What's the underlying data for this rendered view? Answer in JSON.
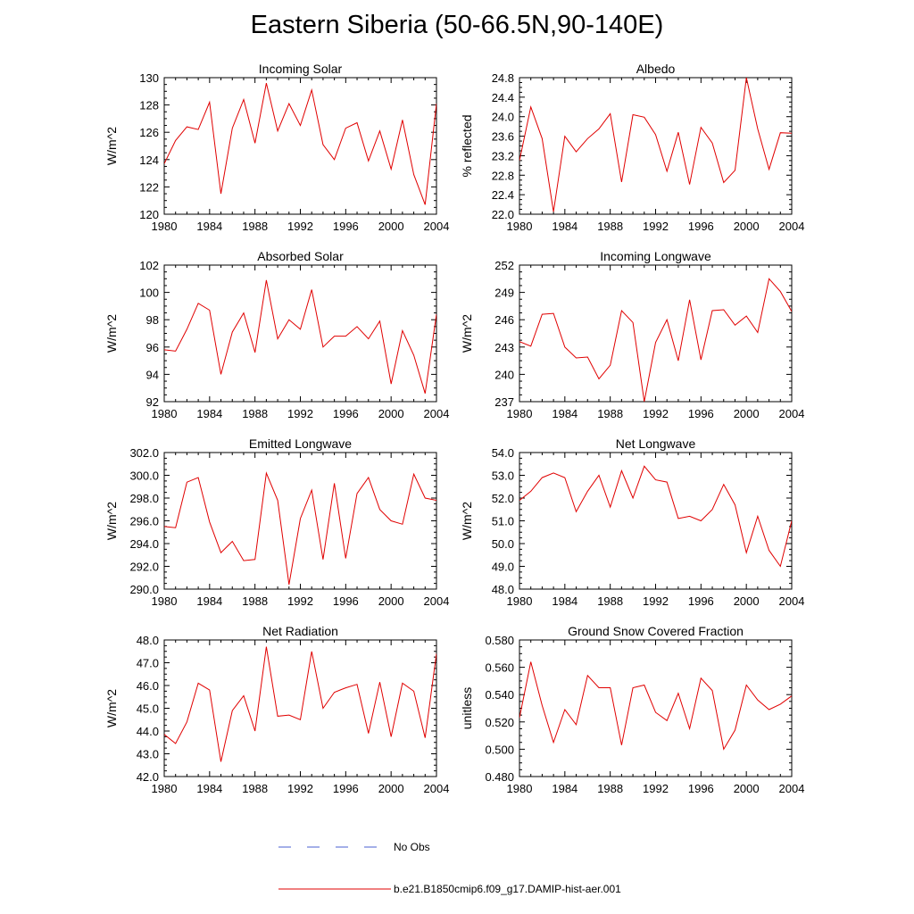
{
  "figure": {
    "title": "Eastern Siberia (50-66.5N,90-140E)"
  },
  "legend": [
    {
      "label": "No Obs",
      "color": "#4a5fd0",
      "dash": "dashed"
    },
    {
      "label": "b.e21.B1850cmip6.f09_g17.DAMIP-hist-aer.001",
      "color": "#e00000",
      "dash": "solid"
    }
  ],
  "chart_data": [
    {
      "type": "line",
      "title": "Incoming Solar",
      "ylabel": "W/m^2",
      "xlim": [
        1980,
        2004
      ],
      "ylim": [
        120,
        130
      ],
      "xticks": [
        1980,
        1984,
        1988,
        1992,
        1996,
        2000,
        2004
      ],
      "yticks": [
        "120",
        "122",
        "124",
        "126",
        "128",
        "130"
      ],
      "ytick_values": [
        120,
        122,
        124,
        126,
        128,
        130
      ],
      "x": [
        1980,
        1981,
        1982,
        1983,
        1984,
        1985,
        1986,
        1987,
        1988,
        1989,
        1990,
        1991,
        1992,
        1993,
        1994,
        1995,
        1996,
        1997,
        1998,
        1999,
        2000,
        2001,
        2002,
        2003,
        2004
      ],
      "series": [
        {
          "color": "#e00000",
          "values": [
            123.7,
            125.4,
            126.4,
            126.2,
            128.2,
            121.5,
            126.3,
            128.4,
            125.2,
            129.6,
            126.1,
            128.1,
            126.5,
            129.1,
            125.1,
            124.0,
            126.3,
            126.7,
            123.9,
            126.1,
            123.3,
            126.9,
            122.9,
            120.7,
            128.1
          ]
        }
      ]
    },
    {
      "type": "line",
      "title": "Albedo",
      "ylabel": "% reflected",
      "xlim": [
        1980,
        2004
      ],
      "ylim": [
        22.0,
        24.8
      ],
      "xticks": [
        1980,
        1984,
        1988,
        1992,
        1996,
        2000,
        2004
      ],
      "yticks": [
        "22.0",
        "22.4",
        "22.8",
        "23.2",
        "23.6",
        "24.0",
        "24.4",
        "24.8"
      ],
      "ytick_values": [
        22.0,
        22.4,
        22.8,
        23.2,
        23.6,
        24.0,
        24.4,
        24.8
      ],
      "x": [
        1980,
        1981,
        1982,
        1983,
        1984,
        1985,
        1986,
        1987,
        1988,
        1989,
        1990,
        1991,
        1992,
        1993,
        1994,
        1995,
        1996,
        1997,
        1998,
        1999,
        2000,
        2001,
        2002,
        2003,
        2004
      ],
      "series": [
        {
          "color": "#e00000",
          "values": [
            23.1,
            24.2,
            23.55,
            22.05,
            23.6,
            23.28,
            23.55,
            23.75,
            24.06,
            22.66,
            24.04,
            23.99,
            23.63,
            22.88,
            23.68,
            22.61,
            23.78,
            23.46,
            22.65,
            22.9,
            24.8,
            23.75,
            22.92,
            23.67,
            23.66
          ]
        }
      ]
    },
    {
      "type": "line",
      "title": "Absorbed Solar",
      "ylabel": "W/m^2",
      "xlim": [
        1980,
        2004
      ],
      "ylim": [
        92,
        102
      ],
      "xticks": [
        1980,
        1984,
        1988,
        1992,
        1996,
        2000,
        2004
      ],
      "yticks": [
        "92",
        "94",
        "96",
        "98",
        "100",
        "102"
      ],
      "ytick_values": [
        92,
        94,
        96,
        98,
        100,
        102
      ],
      "x": [
        1980,
        1981,
        1982,
        1983,
        1984,
        1985,
        1986,
        1987,
        1988,
        1989,
        1990,
        1991,
        1992,
        1993,
        1994,
        1995,
        1996,
        1997,
        1998,
        1999,
        2000,
        2001,
        2002,
        2003,
        2004
      ],
      "series": [
        {
          "color": "#e00000",
          "values": [
            95.8,
            95.7,
            97.3,
            99.2,
            98.7,
            94.0,
            97.1,
            98.5,
            95.6,
            100.9,
            96.6,
            98.0,
            97.3,
            100.2,
            96.0,
            96.8,
            96.8,
            97.5,
            96.6,
            97.9,
            93.3,
            97.2,
            95.4,
            92.6,
            98.4
          ]
        }
      ]
    },
    {
      "type": "line",
      "title": "Incoming Longwave",
      "ylabel": "W/m^2",
      "xlim": [
        1980,
        2004
      ],
      "ylim": [
        237,
        252
      ],
      "xticks": [
        1980,
        1984,
        1988,
        1992,
        1996,
        2000,
        2004
      ],
      "yticks": [
        "237",
        "240",
        "243",
        "246",
        "249",
        "252"
      ],
      "ytick_values": [
        237,
        240,
        243,
        246,
        249,
        252
      ],
      "x": [
        1980,
        1981,
        1982,
        1983,
        1984,
        1985,
        1986,
        1987,
        1988,
        1989,
        1990,
        1991,
        1992,
        1993,
        1994,
        1995,
        1996,
        1997,
        1998,
        1999,
        2000,
        2001,
        2002,
        2003,
        2004
      ],
      "series": [
        {
          "color": "#e00000",
          "values": [
            243.6,
            243.1,
            246.6,
            246.7,
            243.0,
            241.8,
            241.9,
            239.5,
            241.0,
            247.0,
            245.7,
            237.0,
            243.5,
            246.0,
            241.5,
            248.2,
            241.6,
            247.0,
            247.1,
            245.4,
            246.4,
            244.6,
            250.5,
            249.1,
            246.9
          ]
        }
      ]
    },
    {
      "type": "line",
      "title": "Emitted Longwave",
      "ylabel": "W/m^2",
      "xlim": [
        1980,
        2004
      ],
      "ylim": [
        290,
        302
      ],
      "xticks": [
        1980,
        1984,
        1988,
        1992,
        1996,
        2000,
        2004
      ],
      "yticks": [
        "290.0",
        "292.0",
        "294.0",
        "296.0",
        "298.0",
        "300.0",
        "302.0"
      ],
      "ytick_values": [
        290,
        292,
        294,
        296,
        298,
        300,
        302
      ],
      "x": [
        1980,
        1981,
        1982,
        1983,
        1984,
        1985,
        1986,
        1987,
        1988,
        1989,
        1990,
        1991,
        1992,
        1993,
        1994,
        1995,
        1996,
        1997,
        1998,
        1999,
        2000,
        2001,
        2002,
        2003,
        2004
      ],
      "series": [
        {
          "color": "#e00000",
          "values": [
            295.5,
            295.4,
            299.4,
            299.8,
            295.9,
            293.2,
            294.2,
            292.5,
            292.6,
            300.2,
            297.8,
            290.4,
            296.2,
            298.7,
            292.6,
            299.3,
            292.7,
            298.4,
            299.8,
            297.0,
            296.0,
            295.7,
            300.1,
            298.0,
            297.8
          ]
        }
      ]
    },
    {
      "type": "line",
      "title": "Net Longwave",
      "ylabel": "W/m^2",
      "xlim": [
        1980,
        2004
      ],
      "ylim": [
        48,
        54
      ],
      "xticks": [
        1980,
        1984,
        1988,
        1992,
        1996,
        2000,
        2004
      ],
      "yticks": [
        "48.0",
        "49.0",
        "50.0",
        "51.0",
        "52.0",
        "53.0",
        "54.0"
      ],
      "ytick_values": [
        48,
        49,
        50,
        51,
        52,
        53,
        54
      ],
      "x": [
        1980,
        1981,
        1982,
        1983,
        1984,
        1985,
        1986,
        1987,
        1988,
        1989,
        1990,
        1991,
        1992,
        1993,
        1994,
        1995,
        1996,
        1997,
        1998,
        1999,
        2000,
        2001,
        2002,
        2003,
        2004
      ],
      "series": [
        {
          "color": "#e00000",
          "values": [
            51.9,
            52.3,
            52.9,
            53.1,
            52.9,
            51.4,
            52.3,
            53.0,
            51.6,
            53.2,
            52.0,
            53.4,
            52.8,
            52.7,
            51.1,
            51.2,
            51.0,
            51.5,
            52.6,
            51.7,
            49.6,
            51.2,
            49.7,
            49.0,
            51.0
          ]
        }
      ]
    },
    {
      "type": "line",
      "title": "Net Radiation",
      "ylabel": "W/m^2",
      "xlim": [
        1980,
        2004
      ],
      "ylim": [
        42,
        48
      ],
      "xticks": [
        1980,
        1984,
        1988,
        1992,
        1996,
        2000,
        2004
      ],
      "yticks": [
        "42.0",
        "43.0",
        "44.0",
        "45.0",
        "46.0",
        "47.0",
        "48.0"
      ],
      "ytick_values": [
        42,
        43,
        44,
        45,
        46,
        47,
        48
      ],
      "x": [
        1980,
        1981,
        1982,
        1983,
        1984,
        1985,
        1986,
        1987,
        1988,
        1989,
        1990,
        1991,
        1992,
        1993,
        1994,
        1995,
        1996,
        1997,
        1998,
        1999,
        2000,
        2001,
        2002,
        2003,
        2004
      ],
      "series": [
        {
          "color": "#e00000",
          "values": [
            43.85,
            43.45,
            44.4,
            46.1,
            45.8,
            42.65,
            44.9,
            45.55,
            44.0,
            47.7,
            44.65,
            44.7,
            44.5,
            47.5,
            45.0,
            45.7,
            45.9,
            46.05,
            43.9,
            46.15,
            43.75,
            46.1,
            45.75,
            43.7,
            47.4
          ]
        }
      ]
    },
    {
      "type": "line",
      "title": "Ground Snow Covered Fraction",
      "ylabel": "unitless",
      "xlim": [
        1980,
        2004
      ],
      "ylim": [
        0.48,
        0.58
      ],
      "xticks": [
        1980,
        1984,
        1988,
        1992,
        1996,
        2000,
        2004
      ],
      "yticks": [
        "0.480",
        "0.500",
        "0.520",
        "0.540",
        "0.560",
        "0.580"
      ],
      "ytick_values": [
        0.48,
        0.5,
        0.52,
        0.54,
        0.56,
        0.58
      ],
      "x": [
        1980,
        1981,
        1982,
        1983,
        1984,
        1985,
        1986,
        1987,
        1988,
        1989,
        1990,
        1991,
        1992,
        1993,
        1994,
        1995,
        1996,
        1997,
        1998,
        1999,
        2000,
        2001,
        2002,
        2003,
        2004
      ],
      "series": [
        {
          "color": "#e00000",
          "values": [
            0.523,
            0.564,
            0.532,
            0.505,
            0.529,
            0.518,
            0.554,
            0.545,
            0.545,
            0.503,
            0.545,
            0.547,
            0.527,
            0.521,
            0.541,
            0.515,
            0.552,
            0.543,
            0.5,
            0.514,
            0.547,
            0.536,
            0.529,
            0.533,
            0.539
          ]
        }
      ]
    }
  ]
}
